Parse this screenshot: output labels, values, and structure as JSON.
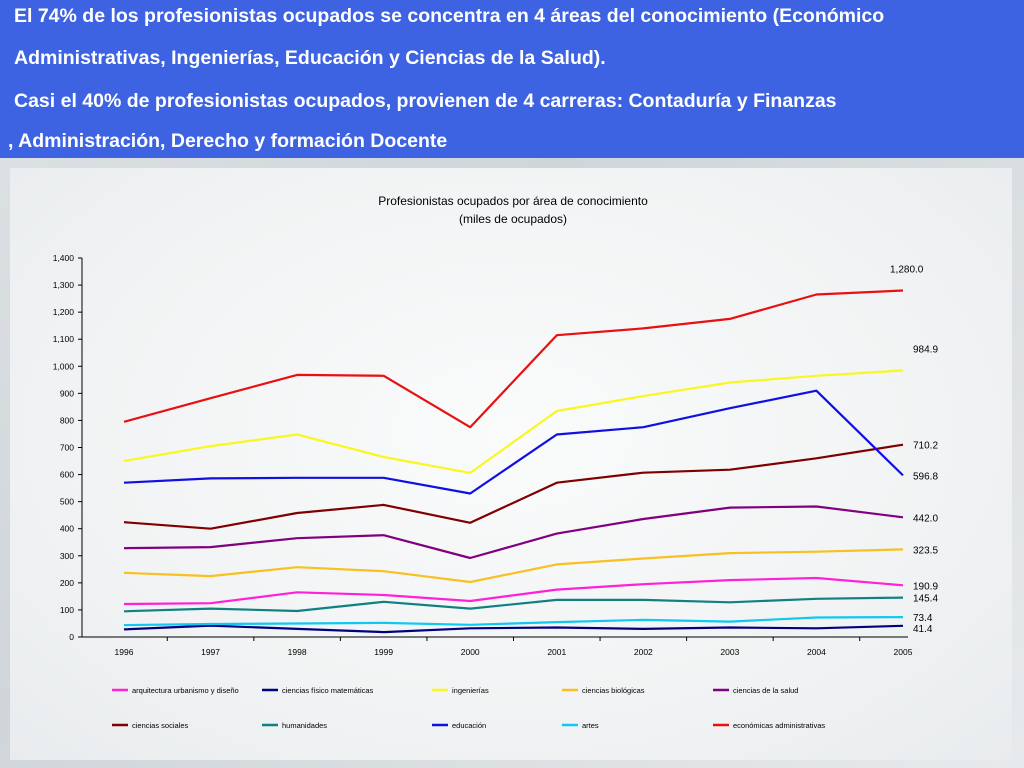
{
  "header": {
    "lines": [
      "El 74% de los profesionistas ocupados se concentra en 4 áreas del conocimiento (Económico",
      "Administrativas, Ingenierías, Educación y Ciencias de la Salud).",
      "Casi el 40% de profesionistas ocupados, provienen de 4 carreras: Contaduría y Finanzas",
      ", Administración, Derecho y formación Docente"
    ]
  },
  "chart_data": {
    "type": "line",
    "title": "Profesionistas ocupados por área de conocimiento",
    "subtitle": "(miles de ocupados)",
    "x": [
      "1996",
      "1997",
      "1998",
      "1999",
      "2000",
      "2001",
      "2002",
      "2003",
      "2004",
      "2005"
    ],
    "ylim": [
      0,
      1400
    ],
    "yticks": [
      "0",
      "100",
      "200",
      "300",
      "400",
      "500",
      "600",
      "700",
      "800",
      "900",
      "1,000",
      "1,100",
      "1,200",
      "1,300",
      "1,400"
    ],
    "grid": false,
    "legend_position": "bottom",
    "series": [
      {
        "name": "arquitectura urbanismo y diseño",
        "color": "#ff20d8",
        "values": [
          122,
          125,
          165,
          155,
          133,
          175,
          195,
          210,
          218,
          190.9
        ],
        "end_label": "190.9"
      },
      {
        "name": "ciencias físico matemáticas",
        "color": "#000080",
        "values": [
          28,
          42,
          30,
          18,
          32,
          35,
          30,
          35,
          32,
          41.4
        ],
        "end_label": "41.4"
      },
      {
        "name": "ingenierías",
        "color": "#f8f820",
        "values": [
          650,
          705,
          748,
          665,
          606,
          835,
          890,
          940,
          965,
          984.9
        ],
        "end_label": "984.9"
      },
      {
        "name": "ciencias biológicas",
        "color": "#f8c020",
        "values": [
          237,
          225,
          258,
          243,
          203,
          268,
          290,
          310,
          315,
          323.5
        ],
        "end_label": "323.5"
      },
      {
        "name": "ciencias de la salud",
        "color": "#800080",
        "values": [
          328,
          332,
          365,
          376,
          292,
          382,
          436,
          478,
          482,
          442.0
        ],
        "end_label": "442.0"
      },
      {
        "name": "ciencias sociales",
        "color": "#800000",
        "values": [
          424,
          400,
          458,
          488,
          422,
          570,
          607,
          618,
          660,
          710.2
        ],
        "end_label": "710.2"
      },
      {
        "name": "humanidades",
        "color": "#108080",
        "values": [
          95,
          105,
          96,
          130,
          105,
          137,
          137,
          128,
          141,
          145.4
        ],
        "end_label": "145.4"
      },
      {
        "name": "educación",
        "color": "#1010e0",
        "values": [
          570,
          586,
          588,
          588,
          530,
          748,
          775,
          845,
          910,
          596.8
        ],
        "end_label": "596.8"
      },
      {
        "name": "artes",
        "color": "#10c8f0",
        "values": [
          44,
          48,
          50,
          52,
          45,
          55,
          63,
          57,
          72,
          73.4
        ],
        "end_label": "73.4"
      },
      {
        "name": "económicas administrativas",
        "color": "#e81010",
        "values": [
          795,
          882,
          968,
          965,
          775,
          1115,
          1140,
          1175,
          1265,
          1280.0
        ],
        "end_label": "1,280.0"
      }
    ]
  }
}
